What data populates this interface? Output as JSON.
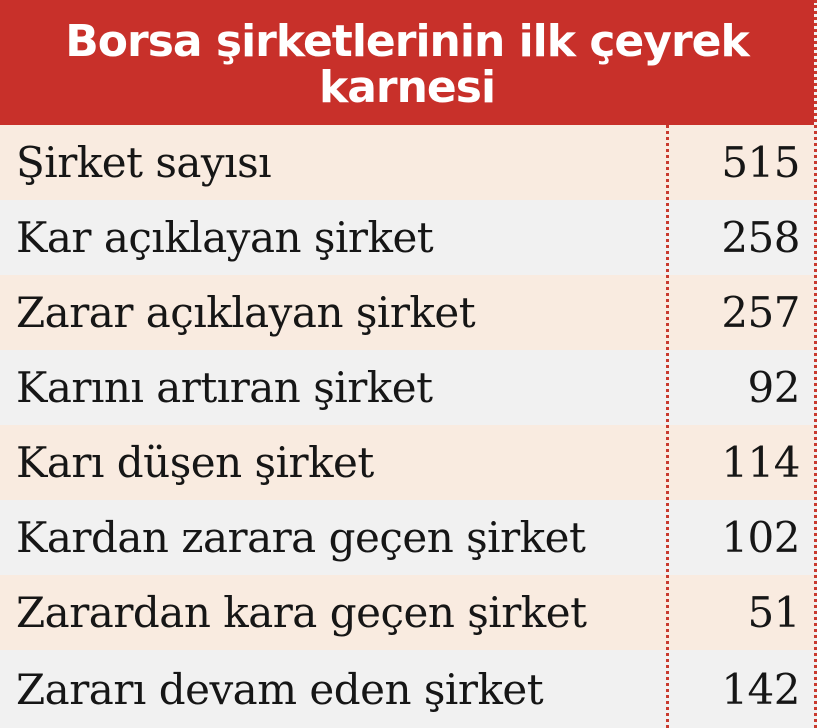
{
  "title": "Borsa şirketlerinin ilk çeyrek karnesi",
  "colors": {
    "header_background": "#c8302a",
    "header_text": "#ffffff",
    "row_background_light": "#f1f1f1",
    "row_background_peach": "#f9ebe0",
    "divider": "#c93a2e"
  },
  "rows": [
    {
      "label": "Şirket sayısı",
      "value": "515"
    },
    {
      "label": "Kar açıklayan şirket",
      "value": "258"
    },
    {
      "label": "Zarar açıklayan şirket",
      "value": "257"
    },
    {
      "label": "Karını artıran şirket",
      "value": "92"
    },
    {
      "label": "Karı düşen şirket",
      "value": "114"
    },
    {
      "label": "Kardan zarara geçen şirket",
      "value": "102"
    },
    {
      "label": "Zarardan kara geçen şirket",
      "value": "51"
    },
    {
      "label": "Zararı devam eden şirket",
      "value": "142"
    }
  ]
}
